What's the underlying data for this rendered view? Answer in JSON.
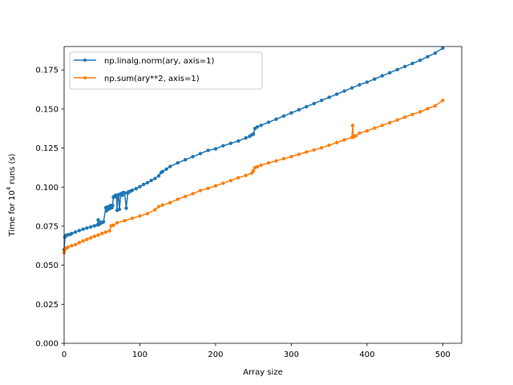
{
  "chart_data": {
    "type": "line",
    "title": "",
    "xlabel": "Array size",
    "ylabel_prefix": "Time for 10",
    "ylabel_exponent": "4",
    "ylabel_suffix": " runs (s)",
    "xlim": [
      0,
      525
    ],
    "ylim": [
      0.0,
      0.19
    ],
    "xticks": [
      0,
      100,
      200,
      300,
      400,
      500
    ],
    "xtick_labels": [
      "0",
      "100",
      "200",
      "300",
      "400",
      "500"
    ],
    "yticks": [
      0.0,
      0.025,
      0.05,
      0.075,
      0.1,
      0.125,
      0.15,
      0.175
    ],
    "ytick_labels": [
      "0.000",
      "0.025",
      "0.050",
      "0.075",
      "0.100",
      "0.125",
      "0.150",
      "0.175"
    ],
    "grid": false,
    "legend_position": "upper-left",
    "series": [
      {
        "name": "np.linalg.norm(ary, axis=1)",
        "color": "#1f77b4",
        "x": [
          0,
          1,
          2,
          3,
          5,
          8,
          10,
          15,
          20,
          25,
          30,
          35,
          40,
          44,
          45,
          46,
          47,
          48,
          50,
          52,
          55,
          56,
          57,
          58,
          59,
          60,
          61,
          62,
          63,
          64,
          65,
          66,
          67,
          68,
          69,
          70,
          71,
          72,
          73,
          75,
          76,
          77,
          78,
          80,
          82,
          84,
          85,
          86,
          88,
          90,
          95,
          100,
          105,
          110,
          115,
          120,
          125,
          128,
          130,
          135,
          140,
          150,
          160,
          170,
          180,
          190,
          200,
          210,
          220,
          230,
          240,
          245,
          248,
          250,
          252,
          255,
          260,
          270,
          280,
          290,
          300,
          310,
          320,
          330,
          340,
          350,
          360,
          370,
          380,
          390,
          400,
          410,
          420,
          430,
          440,
          450,
          460,
          470,
          480,
          490,
          500
        ],
        "y": [
          0.06,
          0.068,
          0.069,
          0.069,
          0.0695,
          0.0697,
          0.0703,
          0.0712,
          0.0722,
          0.0731,
          0.0738,
          0.0745,
          0.0752,
          0.0758,
          0.079,
          0.076,
          0.0765,
          0.0775,
          0.0772,
          0.0778,
          0.0868,
          0.0848,
          0.0872,
          0.0858,
          0.0875,
          0.0862,
          0.0881,
          0.0882,
          0.0868,
          0.0882,
          0.0935,
          0.094,
          0.0938,
          0.0948,
          0.0945,
          0.0852,
          0.0942,
          0.0952,
          0.0858,
          0.0958,
          0.0958,
          0.0948,
          0.0965,
          0.0963,
          0.0865,
          0.0962,
          0.097,
          0.097,
          0.0975,
          0.098,
          0.099,
          0.1003,
          0.1017,
          0.1028,
          0.1042,
          0.1055,
          0.1072,
          0.1093,
          0.11,
          0.1115,
          0.1132,
          0.1155,
          0.1175,
          0.1195,
          0.1215,
          0.1235,
          0.1245,
          0.1265,
          0.128,
          0.1295,
          0.1315,
          0.1325,
          0.1335,
          0.134,
          0.1375,
          0.1385,
          0.1395,
          0.1415,
          0.1435,
          0.1455,
          0.1475,
          0.1495,
          0.1515,
          0.1535,
          0.1555,
          0.1575,
          0.1595,
          0.1615,
          0.1635,
          0.1655,
          0.1672,
          0.1692,
          0.1712,
          0.1732,
          0.1752,
          0.1772,
          0.1792,
          0.1812,
          0.1835,
          0.1858,
          0.189
        ]
      },
      {
        "name": "np.sum(ary**2, axis=1)",
        "color": "#ff7f0e",
        "x": [
          0,
          1,
          3,
          5,
          10,
          15,
          20,
          25,
          30,
          35,
          40,
          45,
          50,
          55,
          60,
          62,
          64,
          65,
          70,
          80,
          90,
          100,
          110,
          120,
          125,
          130,
          140,
          150,
          160,
          170,
          180,
          190,
          200,
          210,
          220,
          230,
          240,
          248,
          250,
          252,
          255,
          260,
          270,
          280,
          290,
          300,
          310,
          320,
          330,
          340,
          350,
          360,
          370,
          380,
          381,
          382,
          383,
          385,
          390,
          400,
          410,
          420,
          430,
          440,
          450,
          460,
          470,
          480,
          490,
          500
        ],
        "y": [
          0.058,
          0.06,
          0.061,
          0.0615,
          0.0625,
          0.0632,
          0.0645,
          0.0655,
          0.0665,
          0.0675,
          0.0685,
          0.0693,
          0.0703,
          0.0712,
          0.072,
          0.0752,
          0.0755,
          0.0755,
          0.0772,
          0.0785,
          0.08,
          0.0815,
          0.083,
          0.0855,
          0.0875,
          0.0885,
          0.09,
          0.0922,
          0.094,
          0.0958,
          0.0978,
          0.0992,
          0.1008,
          0.1025,
          0.1042,
          0.106,
          0.1075,
          0.109,
          0.1105,
          0.1125,
          0.113,
          0.114,
          0.1155,
          0.1168,
          0.1182,
          0.1195,
          0.121,
          0.1225,
          0.1238,
          0.1252,
          0.1268,
          0.1285,
          0.1302,
          0.1318,
          0.1395,
          0.132,
          0.1325,
          0.1328,
          0.1345,
          0.136,
          0.1378,
          0.1395,
          0.1412,
          0.143,
          0.1448,
          0.1465,
          0.1482,
          0.1502,
          0.152,
          0.1555
        ]
      }
    ]
  }
}
